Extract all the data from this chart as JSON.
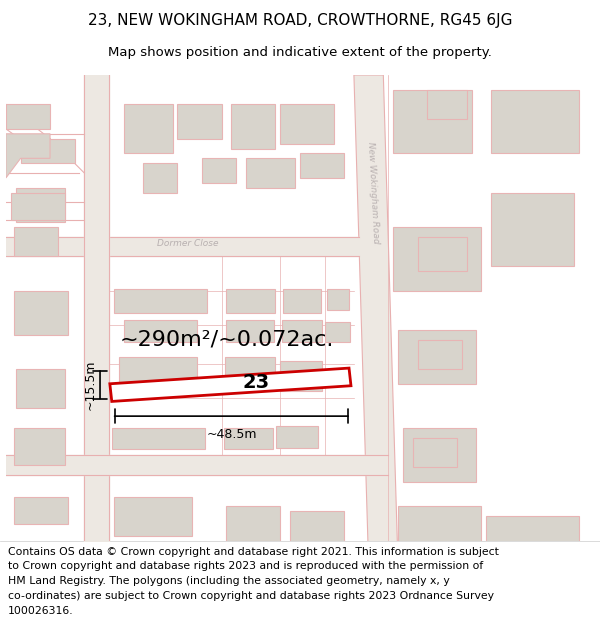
{
  "title_line1": "23, NEW WOKINGHAM ROAD, CROWTHORNE, RG45 6JG",
  "title_line2": "Map shows position and indicative extent of the property.",
  "footer_lines": [
    "Contains OS data © Crown copyright and database right 2021. This information is subject",
    "to Crown copyright and database rights 2023 and is reproduced with the permission of",
    "HM Land Registry. The polygons (including the associated geometry, namely x, y",
    "co-ordinates) are subject to Crown copyright and database rights 2023 Ordnance Survey",
    "100026316."
  ],
  "area_label": "~290m²/~0.072ac.",
  "width_label": "~48.5m",
  "height_label": "~15.5m",
  "property_number": "23",
  "map_bg": "#f7f6f3",
  "road_line_color": "#e8b0b0",
  "road_fill_color": "#ede8e4",
  "building_face": "#d8d4cc",
  "building_edge": "#e8b4b4",
  "plot_color": "#cc0000",
  "dim_color": "#111111",
  "title_fontsize": 11,
  "subtitle_fontsize": 9.5,
  "footer_fontsize": 7.8,
  "area_fontsize": 16,
  "dim_fontsize": 9,
  "num_fontsize": 14,
  "road_label_color": "#b8b0b0",
  "dormer_label_color": "#b8b0b0"
}
